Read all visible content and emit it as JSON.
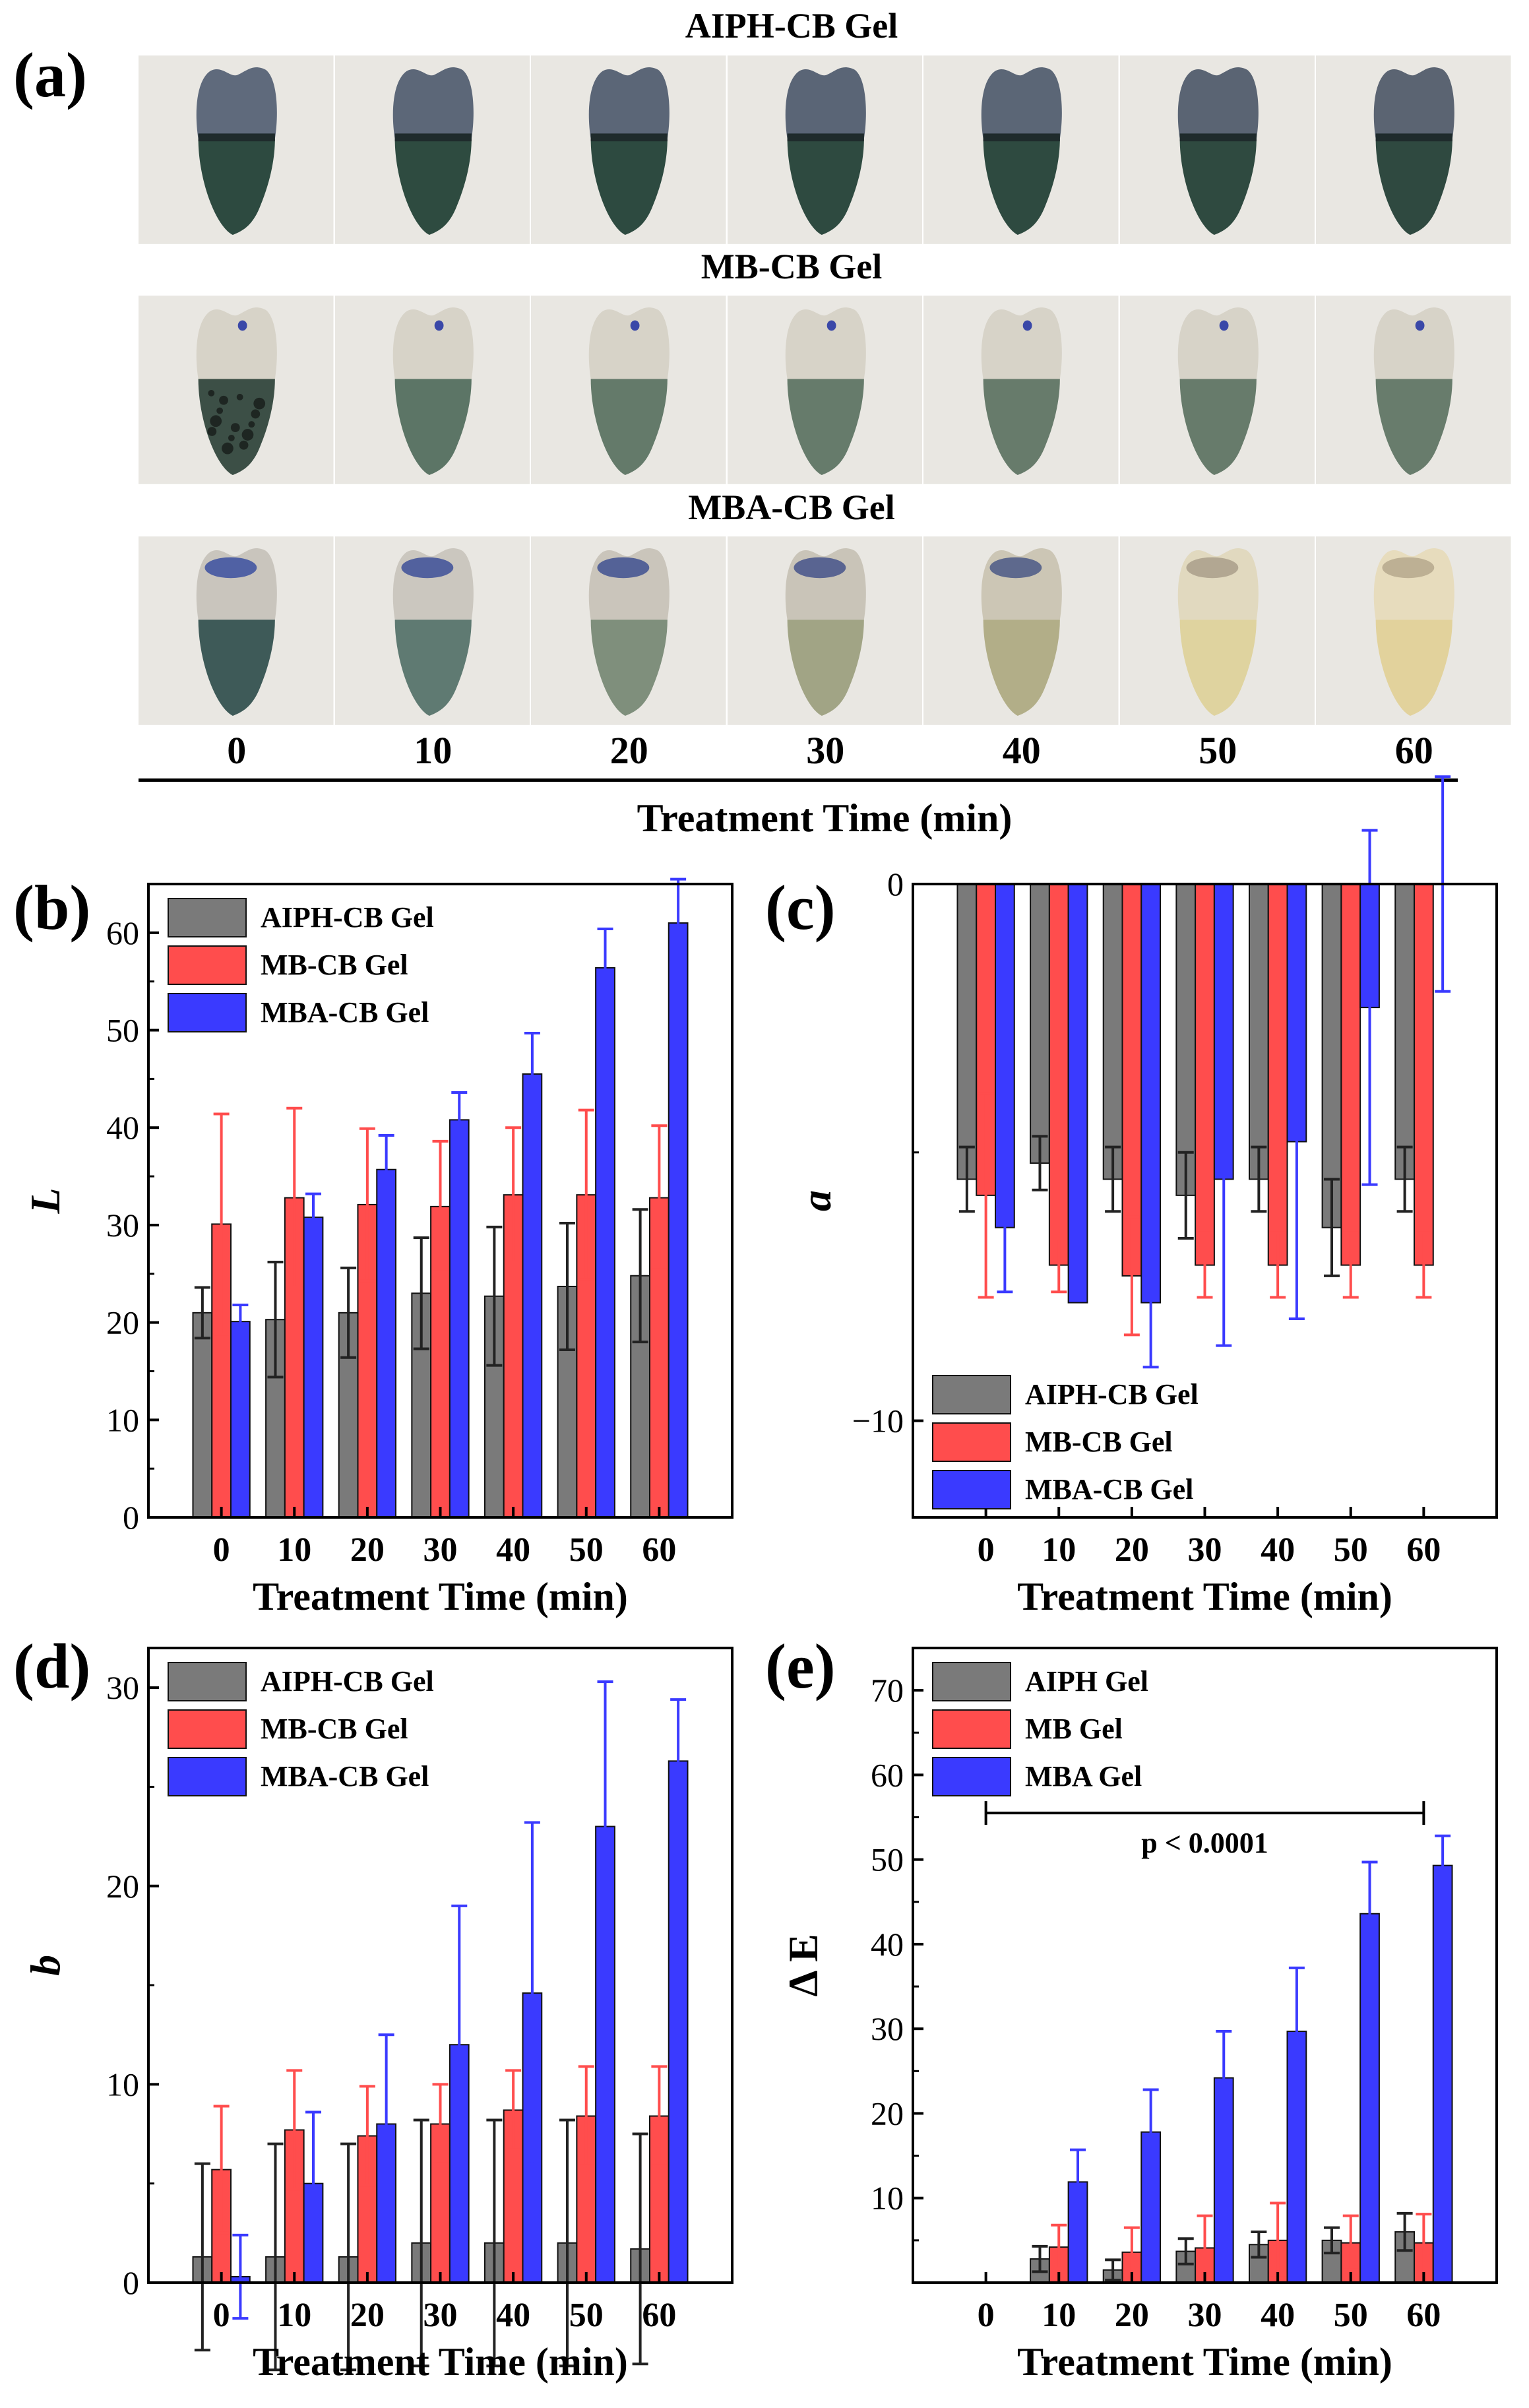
{
  "panel_a": {
    "letter": "(a)",
    "rows": [
      {
        "title": "AIPH-CB Gel",
        "tooth": "aiph"
      },
      {
        "title": "MB-CB Gel",
        "tooth": "mb"
      },
      {
        "title": "MBA-CB Gel",
        "tooth": "mba"
      }
    ],
    "times": [
      "0",
      "10",
      "20",
      "30",
      "40",
      "50",
      "60"
    ],
    "axis_label": "Treatment Time (min)",
    "colors": {
      "aiph_crown": [
        "#5f6a7c",
        "#5c6778",
        "#5b6677",
        "#5a6576",
        "#5b6676",
        "#5a6473",
        "#5b6472"
      ],
      "aiph_root": [
        "#2d4a40",
        "#2e4b40",
        "#2d4a40",
        "#2e4a40",
        "#2e4a40",
        "#2f4a40",
        "#2f4940"
      ],
      "mb_root": [
        "#3c4f46",
        "#5c7566",
        "#647a6a",
        "#667b6b",
        "#677b6b",
        "#677b6b",
        "#687c6c"
      ],
      "mba_crown": [
        "#c9c5bd",
        "#cbc7bf",
        "#cac5bb",
        "#c9c4b8",
        "#ccc6b5",
        "#e1d9bf",
        "#e7dcbd"
      ],
      "mba_root": [
        "#3e5a58",
        "#5f7a72",
        "#7f8f7c",
        "#a1a485",
        "#b2ae88",
        "#dfd39f",
        "#e2d29c"
      ],
      "mba_stain": [
        "#3b4fa0",
        "#3d4f98",
        "#3f5090",
        "#45548a",
        "#4a5886",
        "#7b6a5a",
        "#8a7a62"
      ]
    }
  },
  "chart_data": [
    {
      "id": "b",
      "letter": "(b)",
      "type": "bar",
      "ylabel": "L",
      "xlabel": "Treatment Time (min)",
      "categories": [
        "0",
        "10",
        "20",
        "30",
        "40",
        "50",
        "60"
      ],
      "ylim": [
        0,
        65
      ],
      "yticks": [
        0,
        10,
        20,
        30,
        40,
        50,
        60
      ],
      "legend_position": "top-left",
      "series": [
        {
          "name": "AIPH-CB Gel",
          "color": "#7a7a7a",
          "values": [
            21,
            20.3,
            21,
            23,
            22.7,
            23.7,
            24.8
          ],
          "errors": [
            2.6,
            5.9,
            4.6,
            5.7,
            7.1,
            6.5,
            6.8
          ]
        },
        {
          "name": "MB-CB Gel",
          "color": "#ff4d4d",
          "values": [
            30.1,
            32.8,
            32.1,
            31.9,
            33.1,
            33.1,
            32.8
          ],
          "errors": [
            11.3,
            9.2,
            7.8,
            6.7,
            6.9,
            8.7,
            7.4
          ]
        },
        {
          "name": "MBA-CB Gel",
          "color": "#3a3aff",
          "values": [
            20.1,
            30.8,
            35.7,
            40.8,
            45.5,
            56.4,
            61
          ],
          "errors": [
            1.7,
            2.4,
            3.5,
            2.8,
            4.2,
            4,
            4.5
          ]
        }
      ]
    },
    {
      "id": "c",
      "letter": "(c)",
      "type": "bar",
      "ylabel": "a",
      "xlabel": "Treatment Time (min)",
      "categories": [
        "0",
        "10",
        "20",
        "30",
        "40",
        "50",
        "60"
      ],
      "ylim": [
        -11.8,
        0
      ],
      "yticks": [
        0,
        -10
      ],
      "legend_position": "bottom-left",
      "series": [
        {
          "name": "AIPH-CB Gel",
          "color": "#7a7a7a",
          "values": [
            -5.5,
            -5.2,
            -5.5,
            -5.8,
            -5.5,
            -6.4,
            -5.5
          ],
          "errors": [
            0.6,
            0.5,
            0.6,
            0.8,
            0.6,
            0.9,
            0.6
          ]
        },
        {
          "name": "MB-CB Gel",
          "color": "#ff4d4d",
          "values": [
            -5.8,
            -7.1,
            -7.3,
            -7.1,
            -7.1,
            -7.1,
            -7.1
          ],
          "errors": [
            1.9,
            0.5,
            1.1,
            0.6,
            0.6,
            0.6,
            0.6
          ]
        },
        {
          "name": "MBA-CB Gel",
          "color": "#3a3aff",
          "values": [
            -6.4,
            -7.8,
            -7.8,
            -5.5,
            -4.8,
            -2.3,
            0
          ],
          "errors": [
            1.2,
            0,
            1.2,
            3.1,
            3.3,
            3.3,
            2
          ]
        }
      ]
    },
    {
      "id": "d",
      "letter": "(d)",
      "type": "bar",
      "ylabel": "b",
      "xlabel": "Treatment Time (min)",
      "categories": [
        "0",
        "10",
        "20",
        "30",
        "40",
        "50",
        "60"
      ],
      "ylim": [
        0,
        32
      ],
      "yticks": [
        0,
        10,
        20,
        30
      ],
      "legend_position": "top-left",
      "series": [
        {
          "name": "AIPH-CB Gel",
          "color": "#7a7a7a",
          "values": [
            1.3,
            1.3,
            1.3,
            2,
            2,
            2,
            1.7
          ],
          "errors": [
            4.7,
            5.7,
            5.7,
            6.2,
            6.2,
            6.2,
            5.8
          ]
        },
        {
          "name": "MB-CB Gel",
          "color": "#ff4d4d",
          "values": [
            5.7,
            7.7,
            7.4,
            8,
            8.7,
            8.4,
            8.4
          ],
          "errors": [
            3.2,
            3,
            2.5,
            2,
            2,
            2.5,
            2.5
          ]
        },
        {
          "name": "MBA-CB Gel",
          "color": "#3a3aff",
          "values": [
            0.3,
            5,
            8,
            12,
            14.6,
            23,
            26.3
          ],
          "errors": [
            2.1,
            3.6,
            4.5,
            7,
            8.6,
            7.3,
            3.1
          ]
        }
      ]
    },
    {
      "id": "e",
      "letter": "(e)",
      "type": "bar",
      "ylabel": "Δ E",
      "xlabel": "Treatment Time (min)",
      "categories": [
        "0",
        "10",
        "20",
        "30",
        "40",
        "50",
        "60"
      ],
      "ylim": [
        0,
        75
      ],
      "yticks": [
        10,
        20,
        30,
        40,
        50,
        60,
        70
      ],
      "legend_position": "top-left",
      "annotation": "p < 0.0001",
      "annotation_span": [
        "0",
        "60"
      ],
      "annotation_y": 55.5,
      "series": [
        {
          "name": "AIPH Gel",
          "color": "#7a7a7a",
          "values": [
            0,
            2.8,
            1.5,
            3.7,
            4.5,
            5,
            6
          ],
          "errors": [
            0,
            1.5,
            1.2,
            1.5,
            1.5,
            1.5,
            2.2
          ]
        },
        {
          "name": "MB Gel",
          "color": "#ff4d4d",
          "values": [
            0,
            4.2,
            3.6,
            4.1,
            5,
            4.7,
            4.7
          ],
          "errors": [
            0,
            2.6,
            2.9,
            3.8,
            4.4,
            3.2,
            3.4
          ]
        },
        {
          "name": "MBA Gel",
          "color": "#3a3aff",
          "values": [
            0,
            11.9,
            17.8,
            24.2,
            29.7,
            43.6,
            49.3
          ],
          "errors": [
            0,
            3.8,
            5,
            5.5,
            7.5,
            6.1,
            3.5
          ]
        }
      ]
    }
  ]
}
